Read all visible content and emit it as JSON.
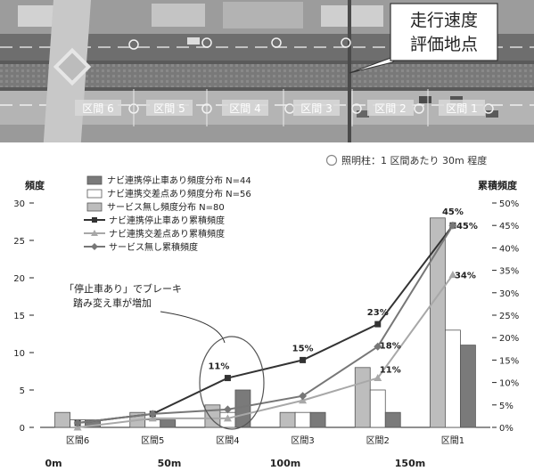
{
  "photo": {
    "callout": [
      "走行速度",
      "評価地点"
    ],
    "section_labels": [
      "区間 6",
      "区間 5",
      "区間 4",
      "区間 3",
      "区間 2",
      "区間 1"
    ],
    "light_note": "照明柱：1 区間あたり 30m 程度"
  },
  "chart_data": {
    "type": "bar+line",
    "categories": [
      "区間6",
      "区間5",
      "区間4",
      "区間3",
      "区間2",
      "区間1"
    ],
    "distance_labels": [
      "0m",
      "50m",
      "100m",
      "150m"
    ],
    "y_left_label": "頻度",
    "y_left_ticks": [
      "0",
      "5",
      "10",
      "15",
      "20",
      "25",
      "30"
    ],
    "y_left_lim": [
      0,
      30
    ],
    "y_right_label": "累積頻度",
    "y_right_ticks": [
      "0%",
      "5%",
      "10%",
      "15%",
      "20%",
      "25%",
      "30%",
      "35%",
      "40%",
      "45%",
      "50%"
    ],
    "y_right_lim": [
      0,
      50
    ],
    "bar_series": [
      {
        "name": "ナビ連携停止車あり頻度分布 N=44",
        "color": "#7a7a7a",
        "values": [
          1,
          1,
          5,
          2,
          2,
          11
        ]
      },
      {
        "name": "ナビ連携交差点あり頻度分布 N=56",
        "color": "#ffffff",
        "values": [
          1,
          1,
          2,
          2,
          5,
          13
        ]
      },
      {
        "name": "サービス無し頻度分布 N=80",
        "color": "#bdbdbd",
        "values": [
          2,
          2,
          3,
          2,
          8,
          28
        ]
      }
    ],
    "line_series": [
      {
        "name": "ナビ連携停止車あり累積頻度",
        "color": "#333333",
        "marker": "square",
        "values": [
          1,
          3,
          11,
          15,
          23,
          45
        ]
      },
      {
        "name": "ナビ連携交差点あり累積頻度",
        "color": "#a8a8a8",
        "marker": "triangle",
        "values": [
          0,
          2,
          2,
          6,
          11,
          34
        ]
      },
      {
        "name": "サービス無し累積頻度",
        "color": "#777777",
        "marker": "diamond",
        "values": [
          1,
          3,
          4,
          7,
          18,
          45
        ]
      }
    ],
    "data_labels": [
      {
        "text": "11%",
        "series": 0,
        "index": 2
      },
      {
        "text": "15%",
        "series": 0,
        "index": 3
      },
      {
        "text": "23%",
        "series": 0,
        "index": 4
      },
      {
        "text": "45%",
        "series": 0,
        "index": 5
      },
      {
        "text": "11%",
        "series": 1,
        "index": 4
      },
      {
        "text": "34%",
        "series": 1,
        "index": 5
      },
      {
        "text": "18%",
        "series": 2,
        "index": 4
      },
      {
        "text": "45%",
        "series": 2,
        "index": 5
      }
    ],
    "annotation": [
      "「停止車あり」でブレーキ",
      "踏み変え車が増加"
    ]
  }
}
